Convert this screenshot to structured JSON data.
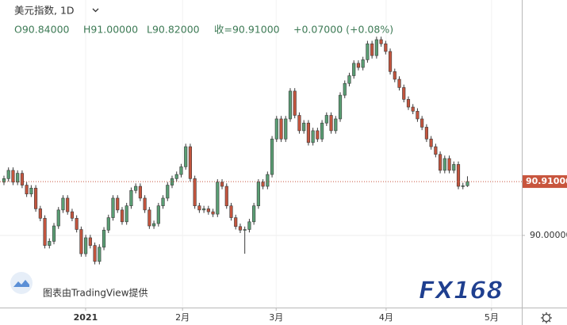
{
  "chart_data": {
    "type": "candlestick",
    "title": "美元指数, 1D",
    "ohlc_labels": [
      "O90.84000",
      "H91.00000",
      "L90.82000",
      "收=90.91000",
      "+0.07000 (+0.08%)"
    ],
    "watermark": "图表由TradingView提供",
    "logo": "FX168",
    "up_color": "#5a9e74",
    "down_color": "#c4553e",
    "outline_color": "#3a3a3a",
    "grid": true,
    "ylim": [
      88.78,
      93.98
    ],
    "yticks": [
      {
        "value": 90,
        "label": "90.00000"
      }
    ],
    "last_price": {
      "value": 90.91,
      "label": "90.91000",
      "color": "#c8553d"
    },
    "xlim": [
      -0.87,
      113.96
    ],
    "xticks": [
      {
        "value": 17.97,
        "label": "2021"
      },
      {
        "value": 39.3,
        "label": "2月"
      },
      {
        "value": 59.9,
        "label": "3月"
      },
      {
        "value": 84.1,
        "label": "4月"
      },
      {
        "value": 107.3,
        "label": "5月"
      }
    ],
    "open": [
      90.9,
      90.96,
      91.1,
      90.9,
      91.05,
      90.85,
      90.7,
      90.8,
      90.45,
      90.29,
      89.83,
      89.9,
      90.16,
      90.43,
      90.63,
      90.4,
      90.29,
      90.1,
      89.69,
      89.96,
      89.83,
      89.56,
      89.8,
      90.09,
      90.3,
      90.63,
      90.43,
      90.23,
      90.5,
      90.76,
      90.83,
      90.63,
      90.43,
      90.16,
      90.2,
      90.5,
      90.63,
      90.85,
      90.96,
      91.03,
      91.16,
      91.5,
      90.96,
      90.5,
      90.43,
      90.45,
      90.4,
      90.36,
      90.9,
      90.83,
      90.5,
      90.3,
      90.15,
      90.09,
      90.1,
      90.23,
      90.5,
      90.9,
      90.83,
      91.03,
      91.63,
      91.97,
      91.63,
      91.97,
      92.44,
      92.03,
      91.77,
      91.9,
      91.57,
      91.77,
      91.63,
      91.9,
      92.03,
      91.77,
      91.97,
      92.37,
      92.57,
      92.7,
      92.91,
      92.84,
      92.97,
      93.24,
      93.04,
      93.31,
      93.24,
      93.11,
      92.77,
      92.64,
      92.5,
      92.3,
      92.17,
      92.1,
      91.97,
      91.83,
      91.63,
      91.5,
      91.37,
      91.1,
      91.3,
      91.1,
      91.2,
      90.83,
      90.84
    ],
    "high": [
      91.01,
      91.15,
      91.15,
      91.1,
      91.1,
      90.9,
      90.85,
      90.85,
      90.5,
      90.34,
      89.95,
      90.21,
      90.48,
      90.68,
      90.68,
      90.45,
      90.34,
      90.15,
      90.01,
      90.01,
      89.88,
      89.85,
      90.14,
      90.35,
      90.68,
      90.68,
      90.48,
      90.55,
      90.81,
      90.88,
      90.88,
      90.68,
      90.48,
      90.25,
      90.55,
      90.68,
      90.9,
      91.01,
      91.08,
      91.21,
      91.55,
      91.55,
      91.01,
      90.55,
      90.5,
      90.5,
      90.45,
      90.95,
      90.95,
      90.88,
      90.55,
      90.35,
      90.2,
      90.15,
      90.28,
      90.55,
      90.95,
      90.95,
      91.08,
      91.68,
      92.02,
      92.02,
      92.02,
      92.49,
      92.49,
      92.08,
      91.95,
      91.95,
      91.82,
      91.82,
      91.95,
      92.08,
      92.08,
      92.02,
      92.42,
      92.62,
      92.75,
      92.96,
      92.96,
      93.02,
      93.29,
      93.29,
      93.36,
      93.36,
      93.29,
      93.16,
      92.82,
      92.69,
      92.55,
      92.35,
      92.22,
      92.15,
      92.02,
      91.88,
      91.68,
      91.55,
      91.42,
      91.35,
      91.35,
      91.25,
      91.25,
      90.89,
      91.0
    ],
    "low": [
      90.85,
      90.91,
      90.85,
      90.85,
      90.8,
      90.65,
      90.65,
      90.4,
      90.24,
      89.78,
      89.78,
      89.85,
      90.11,
      90.38,
      90.35,
      90.24,
      90.05,
      89.64,
      89.64,
      89.78,
      89.51,
      89.51,
      89.75,
      90.04,
      90.25,
      90.38,
      90.18,
      90.18,
      90.45,
      90.71,
      90.58,
      90.38,
      90.11,
      90.11,
      90.15,
      90.45,
      90.58,
      90.8,
      90.91,
      90.98,
      91.11,
      90.91,
      90.45,
      90.38,
      90.38,
      90.35,
      90.31,
      90.31,
      90.78,
      90.45,
      90.25,
      90.1,
      90.04,
      89.69,
      90.05,
      90.18,
      90.45,
      90.78,
      90.78,
      90.98,
      91.58,
      91.58,
      91.58,
      91.92,
      91.98,
      91.72,
      91.72,
      91.52,
      91.52,
      91.58,
      91.58,
      91.85,
      91.72,
      91.72,
      91.92,
      92.32,
      92.52,
      92.65,
      92.79,
      92.79,
      92.92,
      92.99,
      92.99,
      93.19,
      93.06,
      92.72,
      92.59,
      92.45,
      92.25,
      92.12,
      92.05,
      91.92,
      91.78,
      91.58,
      91.45,
      91.32,
      91.05,
      91.05,
      91.05,
      91.05,
      90.78,
      90.78,
      90.82
    ],
    "close": [
      90.96,
      91.1,
      90.9,
      91.05,
      90.85,
      90.7,
      90.8,
      90.45,
      90.29,
      89.83,
      89.9,
      90.16,
      90.43,
      90.63,
      90.4,
      90.29,
      90.1,
      89.69,
      89.96,
      89.83,
      89.56,
      89.8,
      90.09,
      90.3,
      90.63,
      90.43,
      90.23,
      90.5,
      90.76,
      90.83,
      90.63,
      90.43,
      90.16,
      90.2,
      90.5,
      90.63,
      90.85,
      90.96,
      91.03,
      91.16,
      91.5,
      90.96,
      90.5,
      90.43,
      90.45,
      90.4,
      90.36,
      90.9,
      90.83,
      90.5,
      90.3,
      90.15,
      90.09,
      90.1,
      90.23,
      90.5,
      90.9,
      90.83,
      91.03,
      91.63,
      91.97,
      91.63,
      91.97,
      92.44,
      92.03,
      91.77,
      91.9,
      91.57,
      91.77,
      91.63,
      91.9,
      92.03,
      91.77,
      91.97,
      92.37,
      92.57,
      92.7,
      92.91,
      92.84,
      92.97,
      93.24,
      93.04,
      93.31,
      93.24,
      93.11,
      92.77,
      92.64,
      92.5,
      92.3,
      92.17,
      92.1,
      91.97,
      91.83,
      91.63,
      91.5,
      91.37,
      91.1,
      91.3,
      91.1,
      91.2,
      90.83,
      90.84,
      90.91
    ]
  }
}
